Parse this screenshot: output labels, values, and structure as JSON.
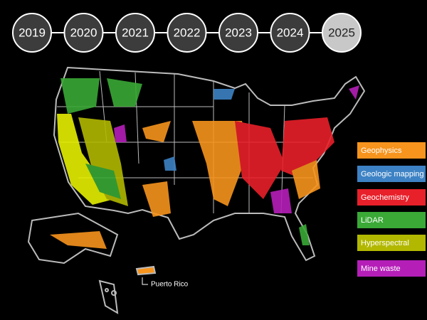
{
  "timeline": {
    "years": [
      "2019",
      "2020",
      "2021",
      "2022",
      "2023",
      "2024",
      "2025"
    ],
    "selected": "2025"
  },
  "legend": {
    "items": [
      {
        "label": "Geophysics",
        "color": "#f7941d"
      },
      {
        "label": "Geologic mapping",
        "color": "#3d82c4"
      },
      {
        "label": "Geochemistry",
        "color": "#e8202a"
      },
      {
        "label": "LiDAR",
        "color": "#3aa936"
      },
      {
        "label": "Hyperspectral",
        "color": "#b2b800"
      },
      {
        "label": "Mine waste",
        "color": "#b51fb8"
      }
    ]
  },
  "map": {
    "labels": {
      "puerto_rico": "Puerto Rico"
    }
  }
}
